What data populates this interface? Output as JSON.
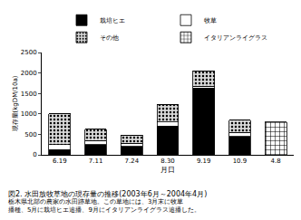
{
  "chart_data": {
    "type": "bar",
    "title": "図2. 水田放牧草地の現存量の推移(2003年6月～2004年4月)",
    "subtitle": [
      "栃木県北部の農家の水田跡草地。この草地には、3月末に牧草",
      "播種、5月に栽培ヒエ追播、9月にイタリアンライグラス追播した。"
    ],
    "x_label": "月日",
    "y_label": "現存量(kgDM/10a)",
    "categories": [
      "6.19",
      "7.11",
      "7.24",
      "8.30",
      "9.19",
      "10.9",
      "4.8"
    ],
    "series": [
      {
        "name": "栽培ヒエ",
        "color": "#000000",
        "marker": "solid",
        "values": [
          130,
          250,
          200,
          700,
          1630,
          450,
          0
        ]
      },
      {
        "name": "牧草",
        "color": "#ffffff",
        "marker": "solid",
        "values": [
          120,
          100,
          80,
          100,
          50,
          100,
          0
        ]
      },
      {
        "name": "その他",
        "color": "#d9d9d9",
        "marker": "dots",
        "values": [
          750,
          280,
          200,
          430,
          370,
          300,
          0
        ]
      },
      {
        "name": "イタリアンライグラス",
        "color": "#ffffff",
        "marker": "grid",
        "values": [
          0,
          0,
          0,
          0,
          0,
          0,
          800
        ]
      }
    ],
    "stacked": true,
    "ylim": [
      0,
      2500
    ],
    "yticks": [
      0,
      500,
      1000,
      1500,
      2000,
      2500
    ],
    "grid": false,
    "legend": "top"
  }
}
